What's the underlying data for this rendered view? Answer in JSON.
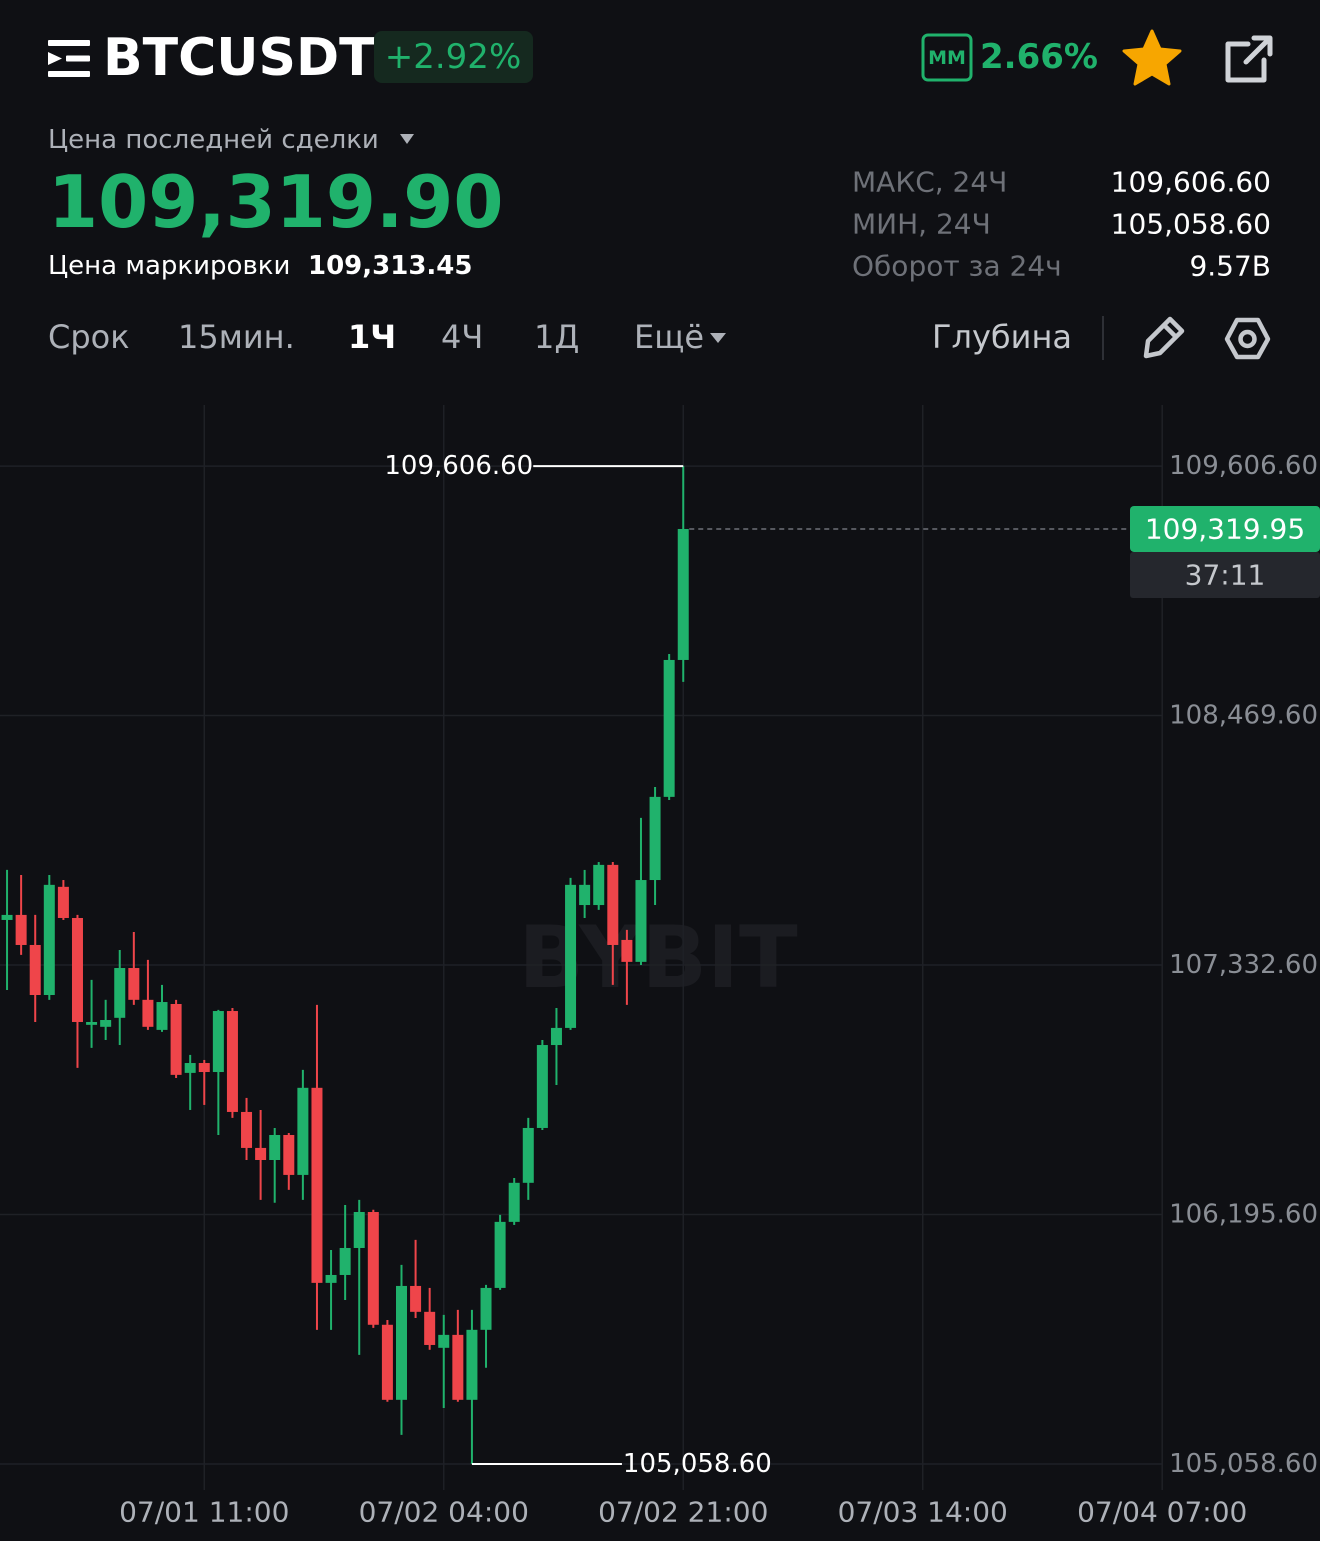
{
  "header": {
    "symbol": "BTCUSDT",
    "change": "+2.92%",
    "mm_label": "MM",
    "mm_value": "2.66%"
  },
  "price": {
    "label": "Цена последней сделки",
    "last": "109,319.90",
    "mark_label": "Цена маркировки",
    "mark": "109,313.45"
  },
  "stats": [
    {
      "label": "МАКС, 24Ч",
      "value": "109,606.60"
    },
    {
      "label": "МИН, 24Ч",
      "value": "105,058.60"
    },
    {
      "label": "Оборот за 24ч",
      "value": "9.57B"
    }
  ],
  "timeframes": [
    "Срок",
    "15мин.",
    "1Ч",
    "4Ч",
    "1Д",
    "Ещё"
  ],
  "active_timeframe": 2,
  "depth": "Глубина",
  "chart_data": {
    "type": "candlestick",
    "watermark": "BYBIT",
    "up_color": "#20b26c",
    "down_color": "#ef454a",
    "grid": true,
    "x": [
      0,
      1,
      2,
      3,
      4,
      5,
      6,
      7,
      8,
      9,
      10,
      11,
      12,
      13,
      14,
      15,
      16,
      17,
      18,
      19,
      20,
      21,
      22,
      23,
      24,
      25,
      26,
      27,
      28,
      29,
      30,
      31,
      32,
      33,
      34,
      35,
      36,
      37,
      38,
      39,
      40,
      41,
      42,
      43,
      44,
      45,
      46,
      47,
      48
    ],
    "open": [
      107538,
      107561,
      107424,
      107196,
      107689,
      107547,
      107060,
      107051,
      107092,
      107319,
      107174,
      107037,
      107155,
      106841,
      106886,
      106845,
      107123,
      106663,
      106499,
      106444,
      106558,
      106376,
      106773,
      105884,
      105920,
      106043,
      106207,
      105693,
      105351,
      105870,
      105752,
      105588,
      105647,
      105351,
      105670,
      105861,
      106162,
      106340,
      106590,
      106968,
      107046,
      107606,
      107606,
      107789,
      107447,
      107347,
      107720,
      108099,
      108723
    ],
    "high": [
      107766,
      107743,
      107561,
      107743,
      107720,
      107561,
      107265,
      107174,
      107401,
      107483,
      107356,
      107242,
      107174,
      106923,
      106900,
      107128,
      107137,
      106727,
      106672,
      106590,
      106567,
      106855,
      107151,
      106034,
      106239,
      106262,
      106217,
      105715,
      105966,
      106080,
      105861,
      105738,
      105761,
      105761,
      105875,
      106194,
      106362,
      106636,
      106991,
      107137,
      107730,
      107766,
      107802,
      107802,
      107493,
      108003,
      108144,
      108750,
      109606.6
    ],
    "low": [
      107219,
      107379,
      107073,
      107174,
      107538,
      106864,
      106955,
      106991,
      106968,
      107151,
      107037,
      107028,
      106818,
      106672,
      106695,
      106558,
      106636,
      106444,
      106262,
      106249,
      106308,
      106262,
      105670,
      105670,
      105806,
      105556,
      105679,
      105342,
      105191,
      105724,
      105579,
      105314,
      105342,
      105058.6,
      105497,
      105852,
      106148,
      106262,
      106581,
      106786,
      107037,
      107547,
      107584,
      107242,
      107151,
      107333,
      107606,
      108085,
      108623
    ],
    "close": [
      107561,
      107424,
      107196,
      107698,
      107547,
      107073,
      107073,
      107082,
      107319,
      107174,
      107051,
      107164,
      106832,
      106886,
      106845,
      107123,
      106663,
      106499,
      106444,
      106558,
      106376,
      106773,
      105884,
      105920,
      106043,
      106207,
      105693,
      105351,
      105870,
      105752,
      105601,
      105647,
      105351,
      105670,
      105861,
      106162,
      106340,
      106590,
      106968,
      107046,
      107698,
      107698,
      107789,
      107424,
      107347,
      107720,
      108099,
      108723,
      109319.95
    ],
    "xlim": [
      -0.5,
      93.2
    ],
    "xticks": [
      {
        "value": 14,
        "label": "07/01 11:00"
      },
      {
        "value": 31,
        "label": "07/02 04:00"
      },
      {
        "value": 48,
        "label": "07/02 21:00"
      },
      {
        "value": 65,
        "label": "07/03 14:00"
      },
      {
        "value": 82,
        "label": "07/04 07:00"
      }
    ],
    "ylim": [
      104940,
      109885
    ],
    "yticks": [
      {
        "value": 109606.6,
        "label": "109,606.60"
      },
      {
        "value": 108469.6,
        "label": "108,469.60"
      },
      {
        "value": 107332.6,
        "label": "107,332.60"
      },
      {
        "value": 106195.6,
        "label": "106,195.60"
      },
      {
        "value": 105058.6,
        "label": "105,058.60"
      }
    ],
    "high_marker": {
      "index": 48,
      "value": 109606.6,
      "label": "109,606.60"
    },
    "low_marker": {
      "index": 33,
      "value": 105058.6,
      "label": "105,058.60"
    },
    "last_price": {
      "value": 109319.95,
      "label": "109,319.95"
    },
    "countdown": "37:11"
  }
}
